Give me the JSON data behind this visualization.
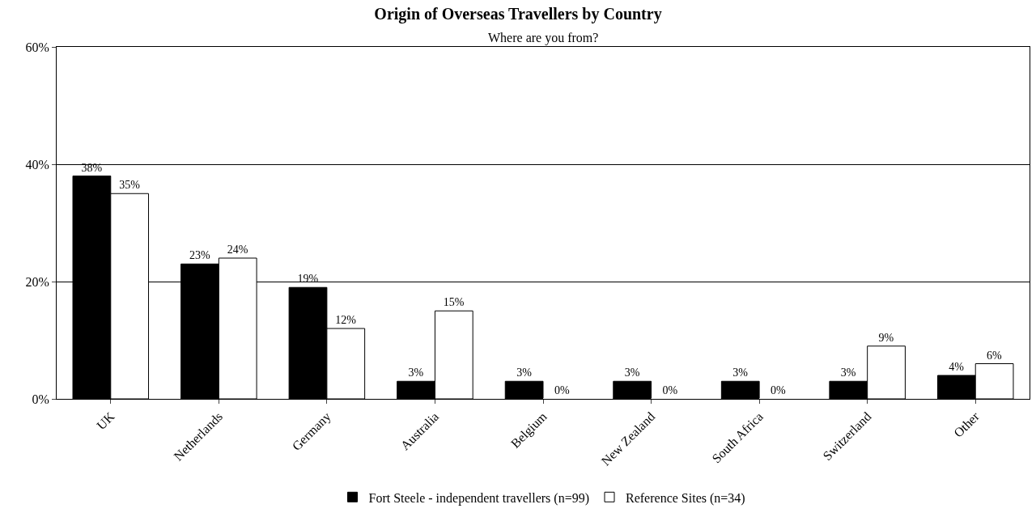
{
  "chart_data": {
    "type": "bar",
    "title": "Origin of Overseas Travellers by Country",
    "subtitle": "Where are you from?",
    "categories": [
      "UK",
      "Netherlands",
      "Germany",
      "Australia",
      "Belgium",
      "New Zealand",
      "South Africa",
      "Switzerland",
      "Other"
    ],
    "series": [
      {
        "name": "Fort Steele - independent travellers (n=99)",
        "color": "#000000",
        "values": [
          38,
          23,
          19,
          3,
          3,
          3,
          3,
          3,
          4
        ],
        "value_labels": [
          "38%",
          "23%",
          "19%",
          "3%",
          "3%",
          "3%",
          "3%",
          "3%",
          "4%"
        ]
      },
      {
        "name": "Reference Sites (n=34)",
        "color": "#ffffff",
        "values": [
          35,
          24,
          12,
          15,
          0,
          0,
          0,
          9,
          6
        ],
        "value_labels": [
          "35%",
          "24%",
          "12%",
          "15%",
          "0%",
          "0%",
          "0%",
          "9%",
          "6%"
        ]
      }
    ],
    "ylim": [
      0,
      60
    ],
    "yticks": [
      {
        "value": 0,
        "label": "0%"
      },
      {
        "value": 20,
        "label": "20%"
      },
      {
        "value": 40,
        "label": "40%"
      },
      {
        "value": 60,
        "label": "60%"
      }
    ],
    "grid": "y",
    "legend": "bottom"
  }
}
